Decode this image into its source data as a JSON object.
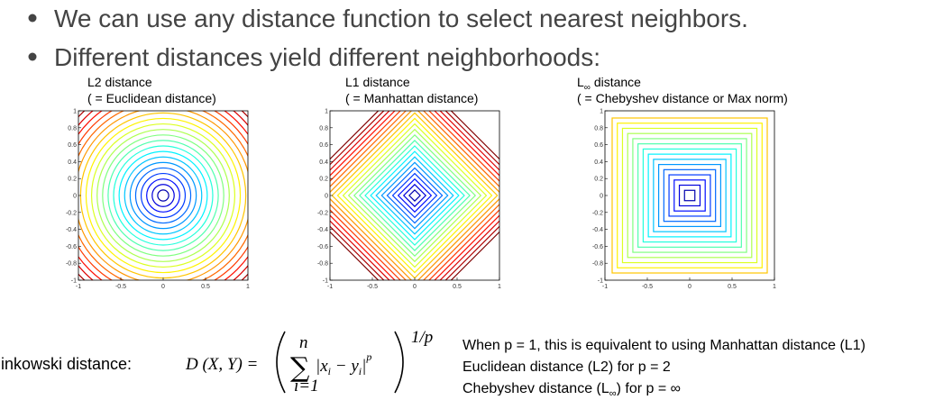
{
  "bullets": [
    "We can use any distance function to select nearest neighbors.",
    "Different distances yield different neighborhoods:"
  ],
  "plots": [
    {
      "title": [
        "L2 distance"
      ],
      "subtitle": "( = Euclidean distance)",
      "shape": "circle"
    },
    {
      "title": [
        "L1 distance"
      ],
      "subtitle": "( = Manhattan distance)",
      "shape": "diamond"
    },
    {
      "title": [
        "L",
        "∞",
        " distance"
      ],
      "subtitle": "( = Chebyshev distance or Max norm)",
      "shape": "square"
    }
  ],
  "axes": {
    "xlim": [
      -1,
      1
    ],
    "ylim": [
      -1,
      1
    ],
    "xticks": [
      -1,
      -0.5,
      0,
      0.5,
      1
    ],
    "yticks": [
      -1,
      -0.8,
      -0.6,
      -0.4,
      -0.2,
      0,
      0.2,
      0.4,
      0.6,
      0.8,
      1
    ]
  },
  "formula": {
    "label": "Minkowski distance:",
    "lhs": "D (X, Y) =",
    "sum": "∑",
    "upper": "n",
    "lower": "i=1",
    "term": [
      "|x",
      "i",
      " − y",
      "i",
      "|",
      "p"
    ],
    "exponent": "1/p"
  },
  "notes": [
    [
      "When p = 1, this is equivalent to using Manhattan distance (L1)"
    ],
    [
      "Euclidean distance (L2) for p = 2"
    ],
    [
      "Chebyshev distance (L",
      "∞",
      ") for p = ∞"
    ]
  ]
}
